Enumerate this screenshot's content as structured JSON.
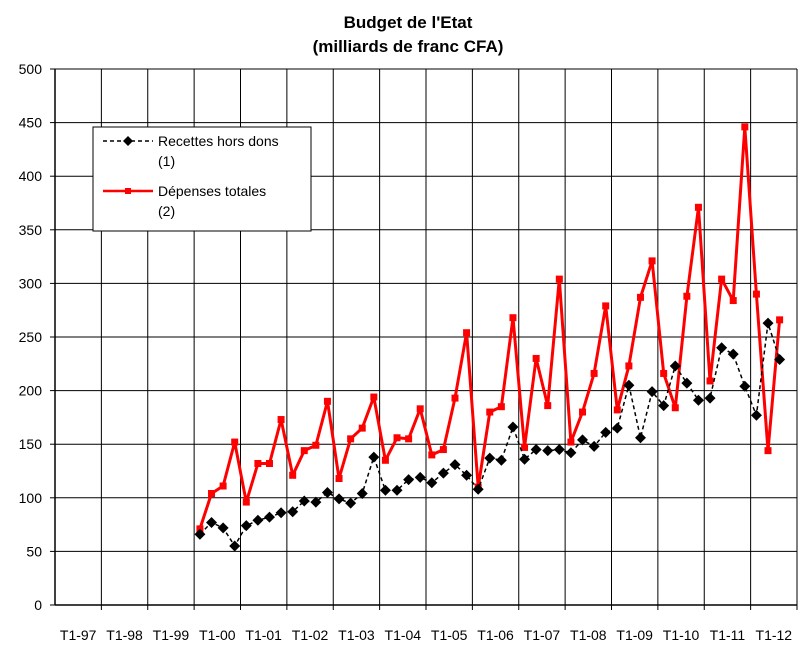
{
  "chart_data": {
    "type": "line",
    "title": "Budget de l'Etat",
    "subtitle": "(milliards de franc CFA)",
    "xlabel": "",
    "ylabel": "",
    "ylim": [
      0,
      500
    ],
    "yticks": [
      0,
      50,
      100,
      150,
      200,
      250,
      300,
      350,
      400,
      450,
      500
    ],
    "x_tick_labels": [
      "T1-97",
      "T1-98",
      "T1-99",
      "T1-00",
      "T1-01",
      "T1-02",
      "T1-03",
      "T1-04",
      "T1-05",
      "T1-06",
      "T1-07",
      "T1-08",
      "T1-09",
      "T1-10",
      "T1-11",
      "T1-12"
    ],
    "first_quarter": "T1-97",
    "quarters_per_tick": 4,
    "grid": true,
    "legend_position": "top-left",
    "series": [
      {
        "name": "Recettes hors dons (1)",
        "legend_lines": [
          "Recettes hors dons",
          "(1)"
        ],
        "color": "#000000",
        "line_style": "dashed",
        "marker": "diamond",
        "start_quarter": "T1-00",
        "values": [
          66,
          77,
          72,
          55,
          74,
          79,
          82,
          86,
          87,
          97,
          96,
          105,
          99,
          95,
          104,
          138,
          107,
          107,
          117,
          119,
          114,
          123,
          131,
          121,
          108,
          137,
          135,
          166,
          136,
          145,
          144,
          145,
          142,
          154,
          148,
          161,
          165,
          205,
          156,
          199,
          186,
          223,
          207,
          191,
          193,
          240,
          234,
          204,
          177,
          263,
          229
        ]
      },
      {
        "name": "Dépenses totales (2)",
        "legend_lines": [
          "Dépenses totales",
          "(2)"
        ],
        "color": "#ff0000",
        "line_style": "solid",
        "marker": "square",
        "start_quarter": "T1-00",
        "values": [
          71,
          104,
          111,
          152,
          96,
          132,
          132,
          173,
          121,
          144,
          149,
          190,
          118,
          155,
          165,
          194,
          135,
          156,
          155,
          183,
          140,
          145,
          193,
          254,
          110,
          180,
          185,
          268,
          147,
          230,
          186,
          304,
          152,
          180,
          216,
          279,
          182,
          223,
          287,
          321,
          216,
          184,
          288,
          371,
          209,
          304,
          284,
          446,
          290,
          144,
          266
        ]
      }
    ]
  }
}
